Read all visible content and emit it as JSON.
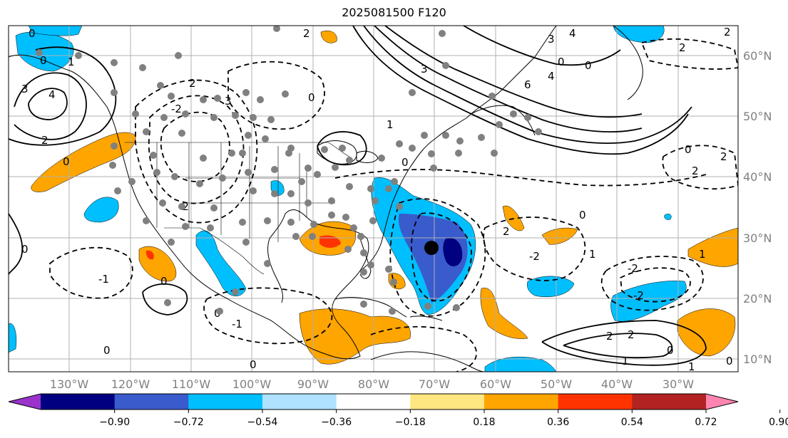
{
  "title": "2025081500 F120",
  "lon_labels": [
    "130°W",
    "120°W",
    "110°W",
    "100°W",
    "90°W",
    "80°W",
    "70°W",
    "60°W",
    "50°W",
    "40°W",
    "30°W"
  ],
  "lat_labels": [
    "60°N",
    "50°N",
    "40°N",
    "30°N",
    "20°N",
    "10°N"
  ],
  "colorbar": {
    "ticks": [
      "−0.90",
      "−0.72",
      "−0.54",
      "−0.36",
      "−0.18",
      "0.18",
      "0.36",
      "0.54",
      "0.72",
      "0.90"
    ],
    "colors": [
      "#9933cc",
      "#000080",
      "#3a5bcc",
      "#00bfff",
      "#aee2ff",
      "#ffffff",
      "#ffe680",
      "#ffa500",
      "#ff3300",
      "#b22222",
      "#ff85b0"
    ]
  },
  "contour_labels": [
    "0",
    "1",
    "2",
    "3",
    "4",
    "6",
    "-1",
    "-2"
  ],
  "storm_marker": {
    "lon": -70.5,
    "lat": 28.2,
    "color": "#000000"
  },
  "station_marker_color": "#808080"
}
